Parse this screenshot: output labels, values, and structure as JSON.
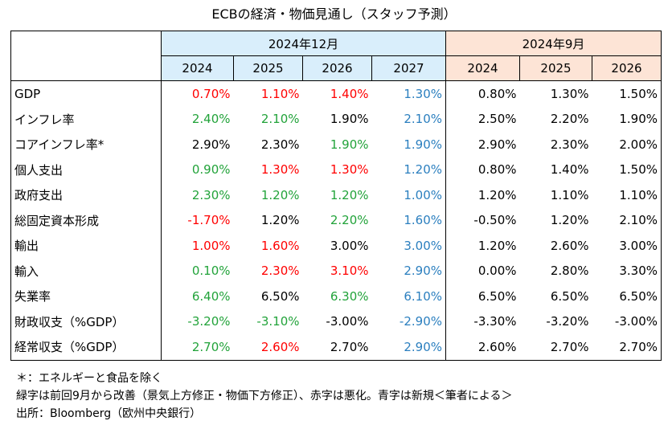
{
  "title": "ECBの経済・物価見通し（スタッフ予測）",
  "group_dec": "2024年12月",
  "group_sep": "2024年9月",
  "years_dec": [
    "2024",
    "2025",
    "2026",
    "2027"
  ],
  "years_sep": [
    "2024",
    "2025",
    "2026"
  ],
  "colors": {
    "black": "#000000",
    "red": "#ff0000",
    "green": "#22a33a",
    "blue": "#2b7fbf",
    "dec_bg": "#d9eefb",
    "sep_bg": "#fde4d6"
  },
  "rows": [
    {
      "label": "GDP",
      "dec": [
        "0.70%",
        "1.10%",
        "1.40%",
        "1.30%"
      ],
      "dec_colors": [
        "red",
        "red",
        "red",
        "blue"
      ],
      "sep": [
        "0.80%",
        "1.30%",
        "1.50%"
      ]
    },
    {
      "label": "インフレ率",
      "dec": [
        "2.40%",
        "2.10%",
        "1.90%",
        "2.10%"
      ],
      "dec_colors": [
        "green",
        "green",
        "black",
        "blue"
      ],
      "sep": [
        "2.50%",
        "2.20%",
        "1.90%"
      ]
    },
    {
      "label": "コアインフレ率*",
      "dec": [
        "2.90%",
        "2.30%",
        "1.90%",
        "1.90%"
      ],
      "dec_colors": [
        "black",
        "black",
        "green",
        "blue"
      ],
      "sep": [
        "2.90%",
        "2.30%",
        "2.00%"
      ]
    },
    {
      "label": "個人支出",
      "dec": [
        "0.90%",
        "1.30%",
        "1.30%",
        "1.20%"
      ],
      "dec_colors": [
        "green",
        "red",
        "red",
        "blue"
      ],
      "sep": [
        "0.80%",
        "1.40%",
        "1.50%"
      ]
    },
    {
      "label": "政府支出",
      "dec": [
        "2.30%",
        "1.20%",
        "1.20%",
        "1.00%"
      ],
      "dec_colors": [
        "green",
        "green",
        "green",
        "blue"
      ],
      "sep": [
        "1.20%",
        "1.10%",
        "1.10%"
      ]
    },
    {
      "label": "総固定資本形成",
      "dec": [
        "-1.70%",
        "1.20%",
        "2.20%",
        "1.60%"
      ],
      "dec_colors": [
        "red",
        "black",
        "green",
        "blue"
      ],
      "sep": [
        "-0.50%",
        "1.20%",
        "2.10%"
      ]
    },
    {
      "label": "輸出",
      "dec": [
        "1.00%",
        "1.60%",
        "3.00%",
        "3.00%"
      ],
      "dec_colors": [
        "red",
        "red",
        "black",
        "blue"
      ],
      "sep": [
        "1.20%",
        "2.60%",
        "3.00%"
      ]
    },
    {
      "label": "輸入",
      "dec": [
        "0.10%",
        "2.30%",
        "3.10%",
        "2.90%"
      ],
      "dec_colors": [
        "green",
        "red",
        "red",
        "blue"
      ],
      "sep": [
        "0.00%",
        "2.80%",
        "3.30%"
      ]
    },
    {
      "label": "失業率",
      "dec": [
        "6.40%",
        "6.50%",
        "6.30%",
        "6.10%"
      ],
      "dec_colors": [
        "green",
        "black",
        "green",
        "blue"
      ],
      "sep": [
        "6.50%",
        "6.50%",
        "6.50%"
      ]
    },
    {
      "label": "財政収支（%GDP）",
      "dec": [
        "-3.20%",
        "-3.10%",
        "-3.00%",
        "-2.90%"
      ],
      "dec_colors": [
        "green",
        "green",
        "black",
        "blue"
      ],
      "sep": [
        "-3.30%",
        "-3.20%",
        "-3.00%"
      ]
    },
    {
      "label": "経常収支（%GDP）",
      "dec": [
        "2.70%",
        "2.60%",
        "2.70%",
        "2.90%"
      ],
      "dec_colors": [
        "green",
        "red",
        "black",
        "blue"
      ],
      "sep": [
        "2.60%",
        "2.70%",
        "2.70%"
      ]
    }
  ],
  "notes": [
    "＊：エネルギーと食品を除く",
    "緑字は前回9月から改善（景気上方修正・物価下方修正）、赤字は悪化。青字は新規＜筆者による＞",
    "出所：Bloomberg（欧州中央銀行）"
  ]
}
